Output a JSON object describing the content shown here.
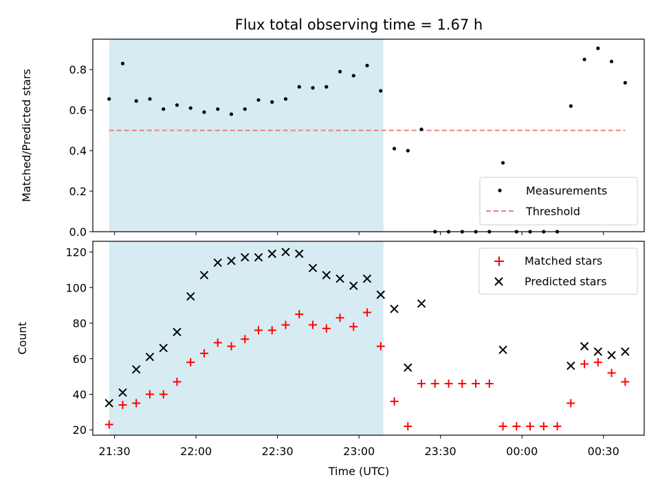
{
  "chart_data": {
    "title": "Flux total observing time = 1.67 h",
    "type": "scatter",
    "xlabel": "Time (UTC)",
    "x_ticks": [
      "21:30",
      "22:00",
      "22:30",
      "23:00",
      "23:30",
      "00:00",
      "00:30"
    ],
    "x_range": [
      "21:22",
      "00:45"
    ],
    "shaded_interval": [
      "21:28",
      "23:09"
    ],
    "shaded_color": "#add8e6",
    "panels": [
      {
        "ylabel": "Matched/Predicted stars",
        "ylim": [
          0,
          0.95
        ],
        "y_ticks": [
          "0.0",
          "0.2",
          "0.4",
          "0.6",
          "0.8"
        ],
        "legend_position": "lower-right",
        "legend": [
          "Measurements",
          "Threshold"
        ],
        "threshold": {
          "value": 0.5,
          "x_start": "21:28",
          "x_end": "00:38",
          "color": "#f08080",
          "style": "dashed"
        },
        "measurements": {
          "color": "#000000",
          "times": [
            "21:28",
            "21:33",
            "21:38",
            "21:43",
            "21:48",
            "21:53",
            "21:58",
            "22:03",
            "22:08",
            "22:13",
            "22:18",
            "22:23",
            "22:28",
            "22:33",
            "22:38",
            "22:43",
            "22:48",
            "22:53",
            "22:58",
            "23:03",
            "23:08",
            "23:13",
            "23:18",
            "23:23",
            "23:28",
            "23:33",
            "23:38",
            "23:43",
            "23:48",
            "23:53",
            "23:58",
            "00:03",
            "00:08",
            "00:13",
            "00:18",
            "00:23",
            "00:28",
            "00:33",
            "00:38"
          ],
          "values": [
            0.655,
            0.83,
            0.645,
            0.655,
            0.605,
            0.625,
            0.61,
            0.59,
            0.605,
            0.58,
            0.605,
            0.65,
            0.64,
            0.655,
            0.715,
            0.71,
            0.715,
            0.79,
            0.77,
            0.82,
            0.695,
            0.41,
            0.4,
            0.505,
            0.0,
            0.0,
            0.0,
            0.0,
            0.0,
            0.34,
            0.0,
            0.0,
            0.0,
            0.0,
            0.62,
            0.85,
            0.905,
            0.84,
            0.735
          ]
        }
      },
      {
        "ylabel": "Count",
        "ylim": [
          17,
          126
        ],
        "y_ticks": [
          "20",
          "40",
          "60",
          "80",
          "100",
          "120"
        ],
        "legend_position": "upper-right",
        "legend": [
          "Matched stars",
          "Predicted stars"
        ],
        "times": [
          "21:28",
          "21:33",
          "21:38",
          "21:43",
          "21:48",
          "21:53",
          "21:58",
          "22:03",
          "22:08",
          "22:13",
          "22:18",
          "22:23",
          "22:28",
          "22:33",
          "22:38",
          "22:43",
          "22:48",
          "22:53",
          "22:58",
          "23:03",
          "23:08",
          "23:13",
          "23:18",
          "23:23",
          "23:28",
          "23:33",
          "23:38",
          "23:43",
          "23:48",
          "23:53",
          "23:58",
          "00:03",
          "00:08",
          "00:13",
          "00:18",
          "00:23",
          "00:28",
          "00:33",
          "00:38"
        ],
        "series": [
          {
            "name": "Matched stars",
            "marker": "plus",
            "color": "#ff0000",
            "values": [
              23,
              34,
              35,
              40,
              40,
              47,
              58,
              63,
              69,
              67,
              71,
              76,
              76,
              79,
              85,
              79,
              77,
              83,
              78,
              86,
              67,
              36,
              22,
              46,
              46,
              46,
              46,
              46,
              46,
              22,
              22,
              22,
              22,
              22,
              35,
              57,
              58,
              52,
              47
            ]
          },
          {
            "name": "Predicted stars",
            "marker": "cross",
            "color": "#000000",
            "indices": [
              0,
              1,
              2,
              3,
              4,
              5,
              6,
              7,
              8,
              9,
              10,
              11,
              12,
              13,
              14,
              15,
              16,
              17,
              18,
              19,
              20,
              21,
              22,
              23,
              29,
              34,
              35,
              36,
              37,
              38
            ],
            "values": [
              35,
              41,
              54,
              61,
              66,
              75,
              95,
              107,
              114,
              115,
              117,
              117,
              119,
              120,
              119,
              111,
              107,
              105,
              101,
              105,
              96,
              88,
              55,
              91,
              65,
              56,
              67,
              64,
              62,
              64
            ]
          }
        ]
      }
    ]
  }
}
